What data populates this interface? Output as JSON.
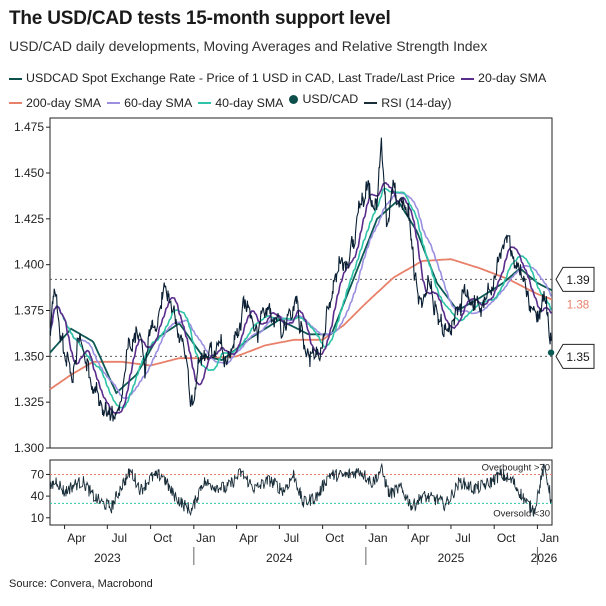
{
  "header": {
    "title": "The USD/CAD tests 15-month support level",
    "subtitle": "USD/CAD daily developments, Moving Averages and Relative Strength Index"
  },
  "legend": [
    {
      "label": "USDCAD Spot Exchange Rate - Price of 1 USD in CAD, Last Trade/Last Price",
      "color": "#0d4f4a",
      "kind": "line"
    },
    {
      "label": "20-day SMA",
      "color": "#5a2d8c",
      "kind": "line"
    },
    {
      "label": "200-day SMA",
      "color": "#e8806a",
      "kind": "line"
    },
    {
      "label": "60-day SMA",
      "color": "#9b8fe0",
      "kind": "line"
    },
    {
      "label": "40-day SMA",
      "color": "#2ec4a7",
      "kind": "line"
    },
    {
      "label": "USD/CAD",
      "color": "#0d4f4a",
      "kind": "dot"
    },
    {
      "label": "RSI (14-day)",
      "color": "#1a2e3a",
      "kind": "line"
    }
  ],
  "source": "Source: Convera, Macrobond",
  "colors": {
    "spot": "#0a1f33",
    "sma20": "#5a2d8c",
    "sma40": "#2ec4a7",
    "sma60": "#9b8fe0",
    "sma200": "#e8806a",
    "long": "#0d5a55",
    "rsi": "#1a2e3a",
    "overbought": "#e8806a",
    "oversold": "#2ec4a7",
    "grid": "#999999"
  },
  "chart_data": {
    "type": "line",
    "ylim": [
      1.3,
      1.48
    ],
    "yticks": [
      "1.475",
      "1.450",
      "1.425",
      "1.400",
      "1.375",
      "1.350",
      "1.325",
      "1.300"
    ],
    "support_levels": [
      1.392,
      1.35
    ],
    "callouts": [
      {
        "label": "1.39",
        "value": 1.392,
        "color": "#1a1a1a",
        "boxed": true
      },
      {
        "label": "1.38",
        "value": 1.381,
        "color": "#e8806a",
        "boxed": false
      },
      {
        "label": "1.35",
        "value": 1.35,
        "color": "#1a1a1a",
        "boxed": true
      }
    ],
    "x_month_labels": [
      "Apr",
      "Jul",
      "Oct",
      "Jan",
      "Apr",
      "Jul",
      "Oct",
      "Jan",
      "Apr",
      "Jul",
      "Oct",
      "Jan"
    ],
    "x_year_labels": [
      "2023",
      "2024",
      "2025",
      "2026"
    ],
    "xrange": [
      "2023-03",
      "2026-02"
    ],
    "spot_anchors": [
      [
        "2023-03-01",
        1.363
      ],
      [
        "2023-03-10",
        1.382
      ],
      [
        "2023-03-25",
        1.36
      ],
      [
        "2023-04-05",
        1.347
      ],
      [
        "2023-04-20",
        1.34
      ],
      [
        "2023-05-01",
        1.358
      ],
      [
        "2023-05-10",
        1.355
      ],
      [
        "2023-05-20",
        1.345
      ],
      [
        "2023-06-05",
        1.335
      ],
      [
        "2023-06-20",
        1.32
      ],
      [
        "2023-07-05",
        1.318
      ],
      [
        "2023-07-15",
        1.313
      ],
      [
        "2023-07-30",
        1.325
      ],
      [
        "2023-08-10",
        1.35
      ],
      [
        "2023-08-25",
        1.358
      ],
      [
        "2023-09-10",
        1.36
      ],
      [
        "2023-09-20",
        1.345
      ],
      [
        "2023-10-01",
        1.365
      ],
      [
        "2023-10-15",
        1.372
      ],
      [
        "2023-10-31",
        1.388
      ],
      [
        "2023-11-10",
        1.38
      ],
      [
        "2023-11-25",
        1.368
      ],
      [
        "2023-12-10",
        1.357
      ],
      [
        "2023-12-28",
        1.322
      ],
      [
        "2024-01-10",
        1.34
      ],
      [
        "2024-01-25",
        1.348
      ],
      [
        "2024-02-10",
        1.35
      ],
      [
        "2024-02-25",
        1.355
      ],
      [
        "2024-03-10",
        1.35
      ],
      [
        "2024-03-25",
        1.358
      ],
      [
        "2024-04-10",
        1.368
      ],
      [
        "2024-04-16",
        1.378
      ],
      [
        "2024-04-30",
        1.37
      ],
      [
        "2024-05-15",
        1.365
      ],
      [
        "2024-05-30",
        1.368
      ],
      [
        "2024-06-10",
        1.375
      ],
      [
        "2024-06-25",
        1.368
      ],
      [
        "2024-07-10",
        1.364
      ],
      [
        "2024-07-25",
        1.38
      ],
      [
        "2024-08-05",
        1.385
      ],
      [
        "2024-08-20",
        1.36
      ],
      [
        "2024-09-05",
        1.355
      ],
      [
        "2024-09-25",
        1.35
      ],
      [
        "2024-10-10",
        1.372
      ],
      [
        "2024-10-25",
        1.388
      ],
      [
        "2024-11-10",
        1.397
      ],
      [
        "2024-11-25",
        1.405
      ],
      [
        "2024-12-10",
        1.418
      ],
      [
        "2024-12-25",
        1.438
      ],
      [
        "2025-01-10",
        1.44
      ],
      [
        "2025-01-25",
        1.435
      ],
      [
        "2025-02-03",
        1.475
      ],
      [
        "2025-02-15",
        1.418
      ],
      [
        "2025-03-01",
        1.445
      ],
      [
        "2025-03-15",
        1.432
      ],
      [
        "2025-04-01",
        1.428
      ],
      [
        "2025-04-15",
        1.39
      ],
      [
        "2025-05-01",
        1.38
      ],
      [
        "2025-05-15",
        1.393
      ],
      [
        "2025-06-01",
        1.37
      ],
      [
        "2025-06-15",
        1.36
      ],
      [
        "2025-07-01",
        1.362
      ],
      [
        "2025-07-15",
        1.37
      ],
      [
        "2025-08-01",
        1.385
      ],
      [
        "2025-08-15",
        1.38
      ],
      [
        "2025-09-01",
        1.375
      ],
      [
        "2025-09-15",
        1.38
      ],
      [
        "2025-10-01",
        1.393
      ],
      [
        "2025-10-15",
        1.405
      ],
      [
        "2025-11-01",
        1.408
      ],
      [
        "2025-11-15",
        1.405
      ],
      [
        "2025-12-01",
        1.398
      ],
      [
        "2025-12-15",
        1.38
      ],
      [
        "2026-01-01",
        1.372
      ],
      [
        "2026-01-15",
        1.388
      ],
      [
        "2026-01-25",
        1.368
      ],
      [
        "2026-02-01",
        1.352
      ]
    ],
    "sma200_anchors": [
      [
        "2023-03-01",
        1.332
      ],
      [
        "2023-04-15",
        1.34
      ],
      [
        "2023-06-01",
        1.347
      ],
      [
        "2023-08-01",
        1.347
      ],
      [
        "2023-10-01",
        1.345
      ],
      [
        "2023-12-01",
        1.349
      ],
      [
        "2024-02-01",
        1.349
      ],
      [
        "2024-04-01",
        1.35
      ],
      [
        "2024-06-01",
        1.356
      ],
      [
        "2024-08-01",
        1.359
      ],
      [
        "2024-10-01",
        1.359
      ],
      [
        "2024-11-15",
        1.367
      ],
      [
        "2025-01-01",
        1.379
      ],
      [
        "2025-03-01",
        1.393
      ],
      [
        "2025-05-01",
        1.402
      ],
      [
        "2025-07-01",
        1.403
      ],
      [
        "2025-09-01",
        1.398
      ],
      [
        "2025-11-01",
        1.392
      ],
      [
        "2026-01-01",
        1.384
      ],
      [
        "2026-02-01",
        1.381
      ]
    ],
    "long_ma_anchors": [
      [
        "2023-03-01",
        1.352
      ],
      [
        "2023-04-15",
        1.365
      ],
      [
        "2023-06-01",
        1.358
      ],
      [
        "2023-07-20",
        1.33
      ],
      [
        "2023-09-01",
        1.34
      ],
      [
        "2023-10-15",
        1.36
      ],
      [
        "2023-12-01",
        1.368
      ],
      [
        "2024-01-20",
        1.35
      ],
      [
        "2024-03-01",
        1.348
      ],
      [
        "2024-05-01",
        1.36
      ],
      [
        "2024-07-01",
        1.37
      ],
      [
        "2024-09-01",
        1.362
      ],
      [
        "2024-10-20",
        1.362
      ],
      [
        "2024-12-10",
        1.395
      ],
      [
        "2025-01-25",
        1.425
      ],
      [
        "2025-03-10",
        1.435
      ],
      [
        "2025-04-20",
        1.418
      ],
      [
        "2025-06-01",
        1.39
      ],
      [
        "2025-07-15",
        1.375
      ],
      [
        "2025-09-01",
        1.382
      ],
      [
        "2025-10-20",
        1.39
      ],
      [
        "2025-11-25",
        1.398
      ],
      [
        "2026-01-01",
        1.39
      ],
      [
        "2026-02-01",
        1.386
      ]
    ],
    "rsi": {
      "ylim": [
        0,
        90
      ],
      "yticks": [
        "70",
        "40",
        "10"
      ],
      "overbought": 70,
      "oversold": 30,
      "overbought_label": "Overbought >70",
      "oversold_label": "Oversold <30",
      "anchors": [
        [
          "2023-03-01",
          52
        ],
        [
          "2023-03-15",
          62
        ],
        [
          "2023-04-01",
          45
        ],
        [
          "2023-04-20",
          55
        ],
        [
          "2023-05-10",
          60
        ],
        [
          "2023-06-01",
          40
        ],
        [
          "2023-06-20",
          30
        ],
        [
          "2023-07-10",
          25
        ],
        [
          "2023-08-01",
          55
        ],
        [
          "2023-08-20",
          75
        ],
        [
          "2023-09-10",
          48
        ],
        [
          "2023-10-01",
          65
        ],
        [
          "2023-10-25",
          70
        ],
        [
          "2023-11-15",
          45
        ],
        [
          "2023-12-10",
          28
        ],
        [
          "2023-12-28",
          20
        ],
        [
          "2024-01-20",
          60
        ],
        [
          "2024-02-10",
          55
        ],
        [
          "2024-03-10",
          50
        ],
        [
          "2024-04-10",
          72
        ],
        [
          "2024-05-10",
          50
        ],
        [
          "2024-06-10",
          62
        ],
        [
          "2024-07-10",
          48
        ],
        [
          "2024-08-01",
          70
        ],
        [
          "2024-08-20",
          30
        ],
        [
          "2024-09-20",
          40
        ],
        [
          "2024-10-15",
          70
        ],
        [
          "2024-11-15",
          68
        ],
        [
          "2024-12-20",
          75
        ],
        [
          "2025-01-15",
          58
        ],
        [
          "2025-02-03",
          78
        ],
        [
          "2025-02-20",
          42
        ],
        [
          "2025-03-15",
          52
        ],
        [
          "2025-04-10",
          25
        ],
        [
          "2025-05-01",
          40
        ],
        [
          "2025-06-01",
          35
        ],
        [
          "2025-06-20",
          28
        ],
        [
          "2025-07-20",
          60
        ],
        [
          "2025-08-20",
          50
        ],
        [
          "2025-09-20",
          58
        ],
        [
          "2025-10-15",
          70
        ],
        [
          "2025-11-10",
          60
        ],
        [
          "2025-12-10",
          30
        ],
        [
          "2025-12-25",
          20
        ],
        [
          "2026-01-15",
          80
        ],
        [
          "2026-01-25",
          55
        ],
        [
          "2026-02-01",
          25
        ]
      ]
    }
  }
}
